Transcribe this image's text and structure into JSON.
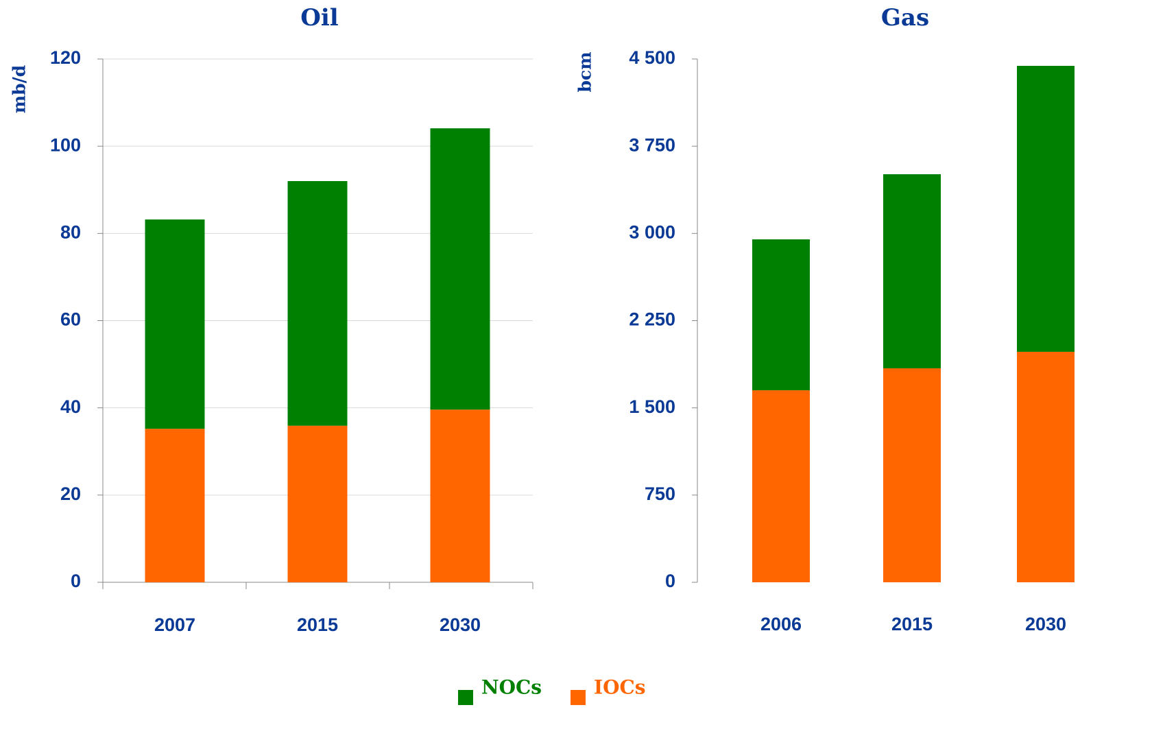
{
  "chart_data": [
    {
      "type": "stacked_bar",
      "title": "Oil",
      "y_label": "mb/d",
      "categories": [
        "2007",
        "2015",
        "2030"
      ],
      "series": [
        {
          "name": "NOCs",
          "color": "#008000",
          "values": [
            48.0,
            56.1,
            64.5
          ]
        },
        {
          "name": "IOCs",
          "color": "#ff6600",
          "values": [
            35.2,
            35.9,
            39.6
          ]
        }
      ],
      "ylim": [
        0,
        120
      ],
      "yticks": [
        0,
        20,
        40,
        60,
        80,
        100,
        120
      ],
      "grid": true
    },
    {
      "type": "stacked_bar",
      "title": "Gas",
      "y_label": "bcm",
      "categories": [
        "2006",
        "2015",
        "2030"
      ],
      "series": [
        {
          "color": "#008000",
          "values": [
            1298,
            1669,
            2459
          ]
        },
        {
          "color": "#ff6600",
          "values": [
            1651,
            1840,
            1982
          ]
        }
      ],
      "ylim": [
        0,
        4500
      ],
      "yticks": [
        0,
        750,
        {
          "value": 1500,
          "label": "1 500"
        },
        {
          "value": 2250,
          "label": "2 250"
        },
        {
          "value": 3000,
          "label": "3 000"
        },
        {
          "value": 3750,
          "label": "3 750"
        },
        {
          "value": 4500,
          "label": "4 500"
        }
      ],
      "grid": false
    }
  ]
}
